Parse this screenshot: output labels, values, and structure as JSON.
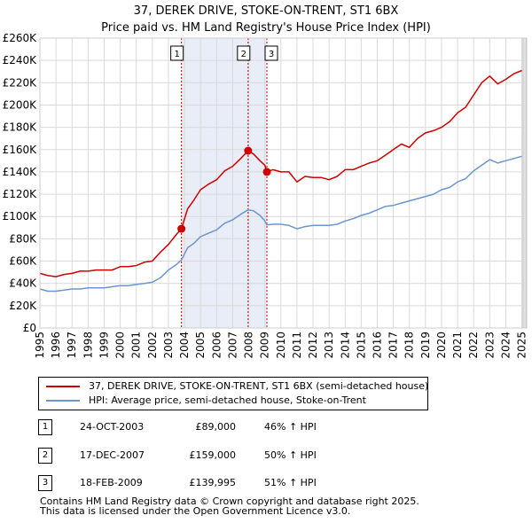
{
  "title": {
    "line1": "37, DEREK DRIVE, STOKE-ON-TRENT, ST1 6BX",
    "line2": "Price paid vs. HM Land Registry's House Price Index (HPI)"
  },
  "colors": {
    "property": "#cc0000",
    "hpi": "#6b96d2",
    "shade": "#e9edf8",
    "grid": "#d9d9d9"
  },
  "chart_data": {
    "type": "line",
    "title": "37, DEREK DRIVE, STOKE-ON-TRENT, ST1 6BX — Price paid vs. HM Land Registry's House Price Index (HPI)",
    "xlabel": "",
    "ylabel": "",
    "xlim": [
      1995,
      2025.3
    ],
    "ylim": [
      0,
      260000
    ],
    "x_ticks": [
      1995,
      1996,
      1997,
      1998,
      1999,
      2000,
      2001,
      2002,
      2003,
      2004,
      2005,
      2006,
      2007,
      2008,
      2009,
      2010,
      2011,
      2012,
      2013,
      2014,
      2015,
      2016,
      2017,
      2018,
      2019,
      2020,
      2021,
      2022,
      2023,
      2024,
      2025
    ],
    "x_tick_labels": [
      "1995",
      "1996",
      "1997",
      "1998",
      "1999",
      "2000",
      "2001",
      "2002",
      "2003",
      "2004",
      "2005",
      "2006",
      "2007",
      "2008",
      "2009",
      "2010",
      "2011",
      "2012",
      "2013",
      "2014",
      "2015",
      "2016",
      "2017",
      "2018",
      "2019",
      "2020",
      "2021",
      "2022",
      "2023",
      "2024",
      "2025"
    ],
    "y_ticks": [
      0,
      20000,
      40000,
      60000,
      80000,
      100000,
      120000,
      140000,
      160000,
      180000,
      200000,
      220000,
      240000,
      260000
    ],
    "y_tick_labels": [
      "£0",
      "£20K",
      "£40K",
      "£60K",
      "£80K",
      "£100K",
      "£120K",
      "£140K",
      "£160K",
      "£180K",
      "£200K",
      "£220K",
      "£240K",
      "£260K"
    ],
    "grid": true,
    "shaded_span": [
      2003.81,
      2009.13
    ],
    "series": [
      {
        "name": "37, DEREK DRIVE, STOKE-ON-TRENT, ST1 6BX (semi-detached house)",
        "color": "#cc0000",
        "x": [
          1995.0,
          1995.5,
          1996.0,
          1996.5,
          1997.0,
          1997.5,
          1998.0,
          1998.5,
          1999.0,
          1999.5,
          2000.0,
          2000.5,
          2001.0,
          2001.5,
          2002.0,
          2002.5,
          2003.0,
          2003.5,
          2003.81,
          2004.2,
          2004.6,
          2005.0,
          2005.5,
          2006.0,
          2006.5,
          2007.0,
          2007.5,
          2007.96,
          2008.3,
          2008.7,
          2009.0,
          2009.13,
          2009.5,
          2010.0,
          2010.5,
          2011.0,
          2011.5,
          2012.0,
          2012.5,
          2013.0,
          2013.5,
          2014.0,
          2014.5,
          2015.0,
          2015.5,
          2016.0,
          2016.5,
          2017.0,
          2017.5,
          2018.0,
          2018.5,
          2019.0,
          2019.5,
          2020.0,
          2020.5,
          2021.0,
          2021.5,
          2022.0,
          2022.5,
          2023.0,
          2023.5,
          2024.0,
          2024.5,
          2025.0
        ],
        "values": [
          49000,
          47000,
          46000,
          48000,
          49000,
          51000,
          51000,
          52000,
          52000,
          52000,
          55000,
          55000,
          56000,
          59000,
          60000,
          68000,
          75000,
          84000,
          89000,
          107000,
          115000,
          124000,
          129000,
          133000,
          141000,
          145000,
          152000,
          159000,
          156000,
          150000,
          146000,
          139995,
          142000,
          140000,
          140000,
          131000,
          136000,
          135000,
          135000,
          133000,
          136000,
          142000,
          142000,
          145000,
          148000,
          150000,
          155000,
          160000,
          165000,
          162000,
          170000,
          175000,
          177000,
          180000,
          185000,
          193000,
          198000,
          209000,
          220000,
          226000,
          219000,
          223000,
          228000,
          231000
        ]
      },
      {
        "name": "HPI: Average price, semi-detached house, Stoke-on-Trent",
        "color": "#6b96d2",
        "x": [
          1995.0,
          1995.5,
          1996.0,
          1996.5,
          1997.0,
          1997.5,
          1998.0,
          1998.5,
          1999.0,
          1999.5,
          2000.0,
          2000.5,
          2001.0,
          2001.5,
          2002.0,
          2002.5,
          2003.0,
          2003.5,
          2003.81,
          2004.2,
          2004.6,
          2005.0,
          2005.5,
          2006.0,
          2006.5,
          2007.0,
          2007.5,
          2007.96,
          2008.3,
          2008.7,
          2009.0,
          2009.13,
          2009.5,
          2010.0,
          2010.5,
          2011.0,
          2011.5,
          2012.0,
          2012.5,
          2013.0,
          2013.5,
          2014.0,
          2014.5,
          2015.0,
          2015.5,
          2016.0,
          2016.5,
          2017.0,
          2017.5,
          2018.0,
          2018.5,
          2019.0,
          2019.5,
          2020.0,
          2020.5,
          2021.0,
          2021.5,
          2022.0,
          2022.5,
          2023.0,
          2023.5,
          2024.0,
          2024.5,
          2025.0
        ],
        "values": [
          35000,
          33000,
          33000,
          34000,
          35000,
          35000,
          36000,
          36000,
          36000,
          37000,
          38000,
          38000,
          39000,
          40000,
          41000,
          45000,
          52000,
          57000,
          61000,
          72000,
          76000,
          82000,
          85000,
          88000,
          94000,
          97000,
          102000,
          106000,
          105000,
          101000,
          96000,
          92500,
          93000,
          93000,
          92000,
          89000,
          91000,
          92000,
          92000,
          92000,
          93000,
          96000,
          98000,
          101000,
          103000,
          106000,
          109000,
          110000,
          112000,
          114000,
          116000,
          118000,
          120000,
          124000,
          126000,
          131000,
          134000,
          141000,
          146000,
          151000,
          148000,
          150000,
          152000,
          154000
        ]
      }
    ],
    "markers": [
      {
        "label": "1",
        "x": 2003.81,
        "value": 89000
      },
      {
        "label": "2",
        "x": 2007.96,
        "value": 159000
      },
      {
        "label": "3",
        "x": 2009.13,
        "value": 139995
      }
    ]
  },
  "legend": {
    "property_label": "37, DEREK DRIVE, STOKE-ON-TRENT, ST1 6BX (semi-detached house)",
    "hpi_label": "HPI: Average price, semi-detached house, Stoke-on-Trent"
  },
  "transactions": [
    {
      "num": "1",
      "date": "24-OCT-2003",
      "price": "£89,000",
      "hpi": "46% ↑ HPI"
    },
    {
      "num": "2",
      "date": "17-DEC-2007",
      "price": "£159,000",
      "hpi": "50% ↑ HPI"
    },
    {
      "num": "3",
      "date": "18-FEB-2009",
      "price": "£139,995",
      "hpi": "51% ↑ HPI"
    }
  ],
  "footer": {
    "line1": "Contains HM Land Registry data © Crown copyright and database right 2025.",
    "line2": "This data is licensed under the Open Government Licence v3.0."
  }
}
